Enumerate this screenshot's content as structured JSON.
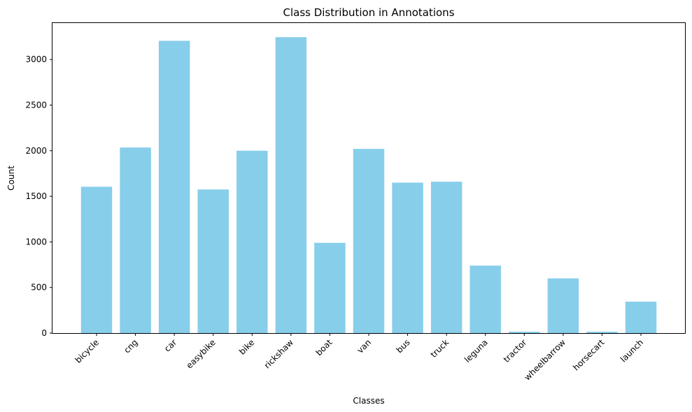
{
  "chart_data": {
    "type": "bar",
    "title": "Class Distribution in Annotations",
    "xlabel": "Classes",
    "ylabel": "Count",
    "categories": [
      "bicycle",
      "cng",
      "car",
      "easybike",
      "bike",
      "rickshaw",
      "boat",
      "van",
      "bus",
      "truck",
      "leguna",
      "tractor",
      "wheelbarrow",
      "horsecart",
      "launch"
    ],
    "values": [
      1605,
      2035,
      3205,
      1575,
      2000,
      3245,
      990,
      2020,
      1650,
      1660,
      740,
      15,
      600,
      15,
      345
    ],
    "ylim": [
      0,
      3400
    ],
    "yticks": [
      0,
      500,
      1000,
      1500,
      2000,
      2500,
      3000
    ],
    "bar_color": "#87ceeb",
    "grid": false,
    "legend": "none"
  }
}
